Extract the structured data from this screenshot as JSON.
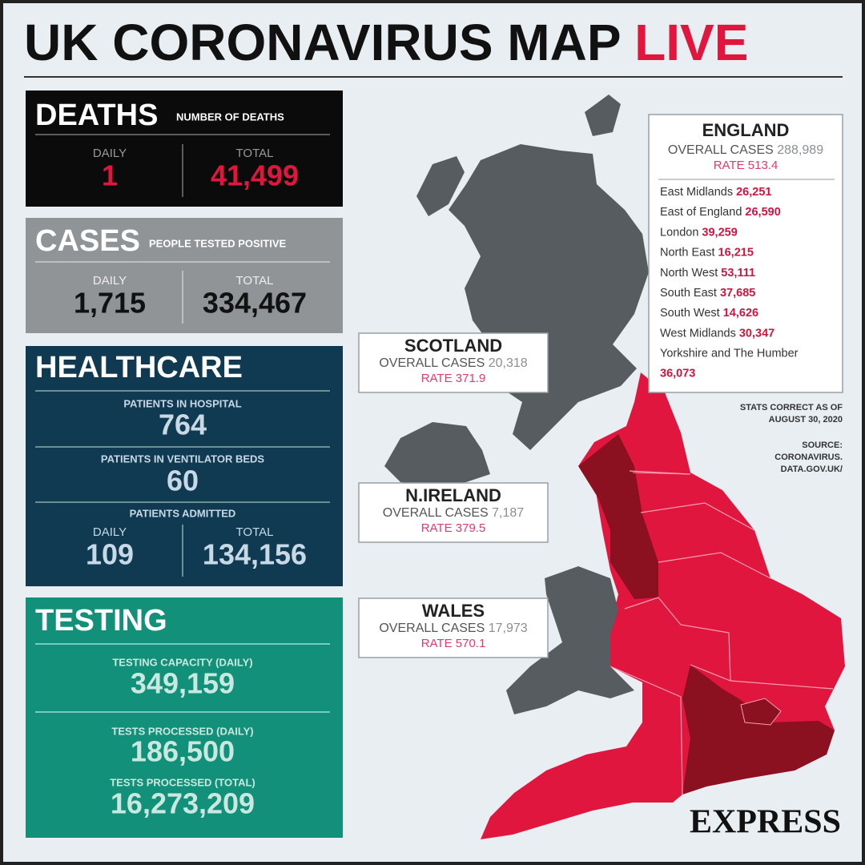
{
  "title": {
    "main": "UK CORONAVIRUS MAP",
    "highlight": "LIVE"
  },
  "deaths": {
    "heading": "DEATHS",
    "subheading": "NUMBER OF DEATHS",
    "daily_label": "DAILY",
    "daily": "1",
    "total_label": "TOTAL",
    "total": "41,499"
  },
  "cases": {
    "heading": "CASES",
    "subheading": "PEOPLE TESTED POSITIVE",
    "daily_label": "DAILY",
    "daily": "1,715",
    "total_label": "TOTAL",
    "total": "334,467"
  },
  "healthcare": {
    "heading": "HEALTHCARE",
    "items": [
      {
        "label": "PATIENTS IN HOSPITAL",
        "value": "764"
      },
      {
        "label": "PATIENTS IN VENTILATOR BEDS",
        "value": "60"
      }
    ],
    "admitted": {
      "label": "PATIENTS ADMITTED",
      "daily_label": "DAILY",
      "daily": "109",
      "total_label": "TOTAL",
      "total": "134,156"
    }
  },
  "testing": {
    "heading": "TESTING",
    "items": [
      {
        "label": "TESTING CAPACITY (DAILY)",
        "value": "349,159"
      },
      {
        "label": "TESTS PROCESSED (DAILY)",
        "value": "186,500"
      },
      {
        "label": "TESTS PROCESSED (TOTAL)",
        "value": "16,273,209"
      }
    ]
  },
  "england": {
    "name": "ENGLAND",
    "cases_label": "OVERALL CASES",
    "cases": "288,989",
    "rate_label": "RATE",
    "rate": "513.4",
    "regions": [
      {
        "name": "East Midlands",
        "cases": "26,251"
      },
      {
        "name": "East of England",
        "cases": "26,590"
      },
      {
        "name": "London",
        "cases": "39,259"
      },
      {
        "name": "North East",
        "cases": "16,215"
      },
      {
        "name": "North West",
        "cases": "53,111"
      },
      {
        "name": "South East",
        "cases": "37,685"
      },
      {
        "name": "South West",
        "cases": "14,626"
      },
      {
        "name": "West Midlands",
        "cases": "30,347"
      },
      {
        "name": "Yorkshire and The Humber",
        "cases": "36,073"
      }
    ]
  },
  "nations": [
    {
      "name": "SCOTLAND",
      "cases_label": "OVERALL CASES",
      "cases": "20,318",
      "rate_label": "RATE",
      "rate": "371.9"
    },
    {
      "name": "N.IRELAND",
      "cases_label": "OVERALL CASES",
      "cases": "7,187",
      "rate_label": "RATE",
      "rate": "379.5"
    },
    {
      "name": "WALES",
      "cases_label": "OVERALL CASES",
      "cases": "17,973",
      "rate_label": "RATE",
      "rate": "570.1"
    }
  ],
  "stats_note": [
    "STATS CORRECT AS OF",
    "AUGUST 30, 2020"
  ],
  "source": [
    "SOURCE:",
    "CORONAVIRUS.",
    "DATA.GOV.UK/"
  ],
  "brand": "EXPRESS"
}
